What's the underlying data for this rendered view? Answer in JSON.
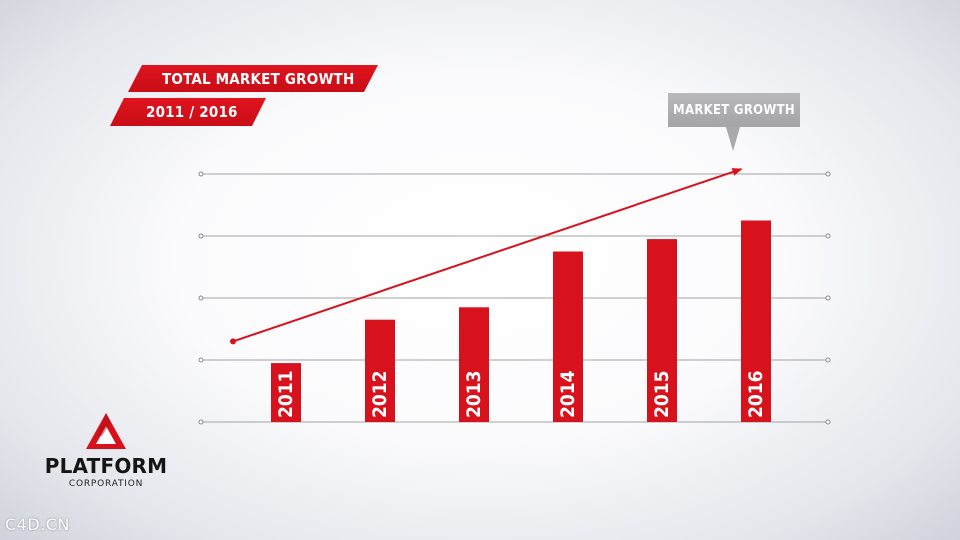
{
  "header": {
    "title": "TOTAL MARKET GROWTH",
    "subtitle": "2011 / 2016"
  },
  "callout": {
    "label": "MARKET GROWTH"
  },
  "logo": {
    "name": "PLATFORM",
    "tagline": "CORPORATION",
    "icon": "triangle-logo-icon"
  },
  "watermark": "C4D.CN",
  "colors": {
    "accent": "#d7121c",
    "gridline": "#a3a3a3",
    "callout": "#a9a9ac"
  },
  "chart_data": {
    "type": "bar",
    "title": "TOTAL MARKET GROWTH",
    "subtitle": "2011 / 2016",
    "categories": [
      "2011",
      "2012",
      "2013",
      "2014",
      "2015",
      "2016"
    ],
    "values": [
      0.95,
      1.65,
      1.85,
      2.75,
      2.95,
      3.25
    ],
    "ylim": [
      0,
      4
    ],
    "grid": true,
    "trend_arrow": {
      "label": "MARKET GROWTH",
      "start": [
        0.5,
        1.3
      ],
      "end": [
        5.1,
        4.08
      ]
    }
  }
}
